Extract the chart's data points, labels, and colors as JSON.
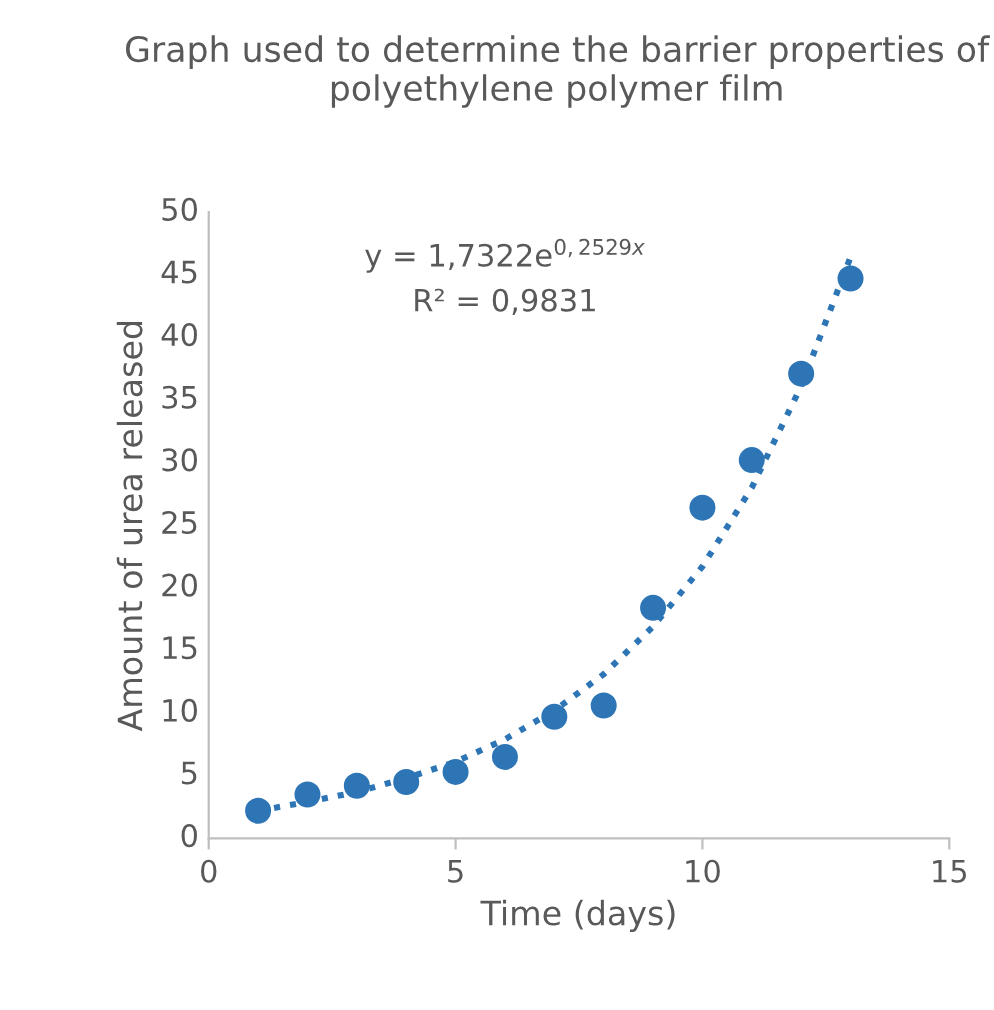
{
  "chart_data": {
    "type": "scatter",
    "title": "Graph used to determine the barrier properties of polyethylene polymer film",
    "xlabel": "Time (days)",
    "ylabel": "Amount of urea released",
    "series": [
      {
        "color": "#2e75b6",
        "x": [
          1,
          2,
          3,
          4,
          5,
          6,
          7,
          8,
          9,
          10,
          11,
          12,
          13
        ],
        "values": [
          2.2,
          3.5,
          4.2,
          4.5,
          5.3,
          6.5,
          9.7,
          10.6,
          18.4,
          26.4,
          30.2,
          37.1,
          44.7
        ]
      },
      {
        "type": "line",
        "color": "#2e75b6",
        "line_style": "dotted",
        "marker": "none",
        "x": [
          1,
          2,
          3,
          4,
          5,
          6,
          7,
          8,
          9,
          10,
          11,
          12,
          13
        ],
        "values": [
          2.2,
          2.9,
          3.7,
          4.8,
          6.1,
          7.9,
          10.2,
          13.1,
          16.9,
          21.7,
          28.0,
          36.1,
          46.4
        ]
      }
    ],
    "annotations": [
      "y = 1,7322e$^{0,2529x}$",
      "R² = 0,9831"
    ],
    "xlim": [
      0,
      15
    ],
    "xticks": [
      0,
      5,
      10,
      15
    ],
    "ylim": [
      0,
      50
    ],
    "yticks": [
      0,
      5,
      10,
      15,
      20,
      25,
      30,
      35,
      40,
      45,
      50
    ],
    "grid": false,
    "legend": false
  }
}
